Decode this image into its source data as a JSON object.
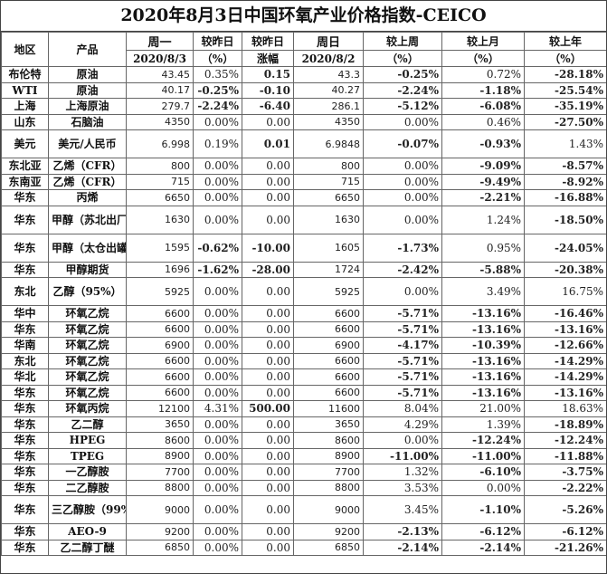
{
  "title": "2020年8月3日中国环氧产业价格指数-CEICO",
  "headers": {
    "region": "地区",
    "product": "产品",
    "mon": "周一",
    "mon_date": "2020/8/3",
    "vs_prev": "较昨日",
    "vs_prev_unit": "（%）",
    "vs_prev_amt": "较昨日",
    "vs_prev_amt_sub": "涨幅",
    "sun": "周日",
    "sun_date": "2020/8/2",
    "vs_week": "较上周",
    "vs_week_unit": "（%）",
    "vs_month": "较上月",
    "vs_month_unit": "（%）",
    "vs_year": "较上年",
    "vs_year_unit": "（%）"
  },
  "rows": [
    {
      "region": "布伦特",
      "product": "原油",
      "mon": "43.45",
      "d_pct": "0.35%",
      "d_amt": "0.15",
      "sun": "43.3",
      "w": "-0.25%",
      "m": "0.72%",
      "y": "-28.18%",
      "tall": false
    },
    {
      "region": "WTI",
      "product": "原油",
      "mon": "40.17",
      "d_pct": "-0.25%",
      "d_amt": "-0.10",
      "sun": "40.27",
      "w": "-2.24%",
      "m": "-1.18%",
      "y": "-25.54%",
      "tall": false
    },
    {
      "region": "上海",
      "product": "上海原油",
      "mon": "279.7",
      "d_pct": "-2.24%",
      "d_amt": "-6.40",
      "sun": "286.1",
      "w": "-5.12%",
      "m": "-6.08%",
      "y": "-35.19%",
      "tall": false
    },
    {
      "region": "山东",
      "product": "石脑油",
      "mon": "4350",
      "d_pct": "0.00%",
      "d_amt": "0.00",
      "sun": "4350",
      "w": "0.00%",
      "m": "0.46%",
      "y": "-27.50%",
      "tall": false
    },
    {
      "region": "美元",
      "product": "美元/人民币",
      "mon": "6.998",
      "d_pct": "0.19%",
      "d_amt": "0.01",
      "sun": "6.9848",
      "w": "-0.07%",
      "m": "-0.93%",
      "y": "1.43%",
      "tall": true
    },
    {
      "region": "东北亚",
      "product": "乙烯（CFR）",
      "mon": "800",
      "d_pct": "0.00%",
      "d_amt": "0.00",
      "sun": "800",
      "w": "0.00%",
      "m": "-9.09%",
      "y": "-8.57%",
      "tall": false
    },
    {
      "region": "东南亚",
      "product": "乙烯（CFR）",
      "mon": "715",
      "d_pct": "0.00%",
      "d_amt": "0.00",
      "sun": "715",
      "w": "0.00%",
      "m": "-9.49%",
      "y": "-8.92%",
      "tall": false
    },
    {
      "region": "华东",
      "product": "丙烯",
      "mon": "6650",
      "d_pct": "0.00%",
      "d_amt": "0.00",
      "sun": "6650",
      "w": "0.00%",
      "m": "-2.21%",
      "y": "-16.88%",
      "tall": false
    },
    {
      "region": "华东",
      "product": "甲醇（苏北出厂）",
      "mon": "1630",
      "d_pct": "0.00%",
      "d_amt": "0.00",
      "sun": "1630",
      "w": "0.00%",
      "m": "1.24%",
      "y": "-18.50%",
      "tall": true
    },
    {
      "region": "华东",
      "product": "甲醇（太仓出罐）",
      "mon": "1595",
      "d_pct": "-0.62%",
      "d_amt": "-10.00",
      "sun": "1605",
      "w": "-1.73%",
      "m": "0.95%",
      "y": "-24.05%",
      "tall": true
    },
    {
      "region": "华东",
      "product": "甲醇期货",
      "mon": "1696",
      "d_pct": "-1.62%",
      "d_amt": "-28.00",
      "sun": "1724",
      "w": "-2.42%",
      "m": "-5.88%",
      "y": "-20.38%",
      "tall": false
    },
    {
      "region": "东北",
      "product": "乙醇（95%）",
      "mon": "5925",
      "d_pct": "0.00%",
      "d_amt": "0.00",
      "sun": "5925",
      "w": "0.00%",
      "m": "3.49%",
      "y": "16.75%",
      "tall": true
    },
    {
      "region": "华中",
      "product": "环氧乙烷",
      "mon": "6600",
      "d_pct": "0.00%",
      "d_amt": "0.00",
      "sun": "6600",
      "w": "-5.71%",
      "m": "-13.16%",
      "y": "-16.46%",
      "tall": false
    },
    {
      "region": "华东",
      "product": "环氧乙烷",
      "mon": "6600",
      "d_pct": "0.00%",
      "d_amt": "0.00",
      "sun": "6600",
      "w": "-5.71%",
      "m": "-13.16%",
      "y": "-13.16%",
      "tall": false
    },
    {
      "region": "华南",
      "product": "环氧乙烷",
      "mon": "6900",
      "d_pct": "0.00%",
      "d_amt": "0.00",
      "sun": "6900",
      "w": "-4.17%",
      "m": "-10.39%",
      "y": "-12.66%",
      "tall": false
    },
    {
      "region": "东北",
      "product": "环氧乙烷",
      "mon": "6600",
      "d_pct": "0.00%",
      "d_amt": "0.00",
      "sun": "6600",
      "w": "-5.71%",
      "m": "-13.16%",
      "y": "-14.29%",
      "tall": false
    },
    {
      "region": "华北",
      "product": "环氧乙烷",
      "mon": "6600",
      "d_pct": "0.00%",
      "d_amt": "0.00",
      "sun": "6600",
      "w": "-5.71%",
      "m": "-13.16%",
      "y": "-14.29%",
      "tall": false
    },
    {
      "region": "华东",
      "product": "环氧乙烷",
      "mon": "6600",
      "d_pct": "0.00%",
      "d_amt": "0.00",
      "sun": "6600",
      "w": "-5.71%",
      "m": "-13.16%",
      "y": "-13.16%",
      "tall": false
    },
    {
      "region": "华东",
      "product": "环氧丙烷",
      "mon": "12100",
      "d_pct": "4.31%",
      "d_amt": "500.00",
      "sun": "11600",
      "w": "8.04%",
      "m": "21.00%",
      "y": "18.63%",
      "tall": false
    },
    {
      "region": "华东",
      "product": "乙二醇",
      "mon": "3650",
      "d_pct": "0.00%",
      "d_amt": "0.00",
      "sun": "3650",
      "w": "4.29%",
      "m": "1.39%",
      "y": "-18.89%",
      "tall": false
    },
    {
      "region": "华东",
      "product": "HPEG",
      "mon": "8600",
      "d_pct": "0.00%",
      "d_amt": "0.00",
      "sun": "8600",
      "w": "0.00%",
      "m": "-12.24%",
      "y": "-12.24%",
      "tall": false
    },
    {
      "region": "华东",
      "product": "TPEG",
      "mon": "8900",
      "d_pct": "0.00%",
      "d_amt": "0.00",
      "sun": "8900",
      "w": "-11.00%",
      "m": "-11.00%",
      "y": "-11.88%",
      "tall": false
    },
    {
      "region": "华东",
      "product": "一乙醇胺",
      "mon": "7700",
      "d_pct": "0.00%",
      "d_amt": "0.00",
      "sun": "7700",
      "w": "1.32%",
      "m": "-6.10%",
      "y": "-3.75%",
      "tall": false
    },
    {
      "region": "华东",
      "product": "二乙醇胺",
      "mon": "8800",
      "d_pct": "0.00%",
      "d_amt": "0.00",
      "sun": "8800",
      "w": "3.53%",
      "m": "0.00%",
      "y": "-2.22%",
      "tall": false
    },
    {
      "region": "华东",
      "product": "三乙醇胺（99%）",
      "mon": "9000",
      "d_pct": "0.00%",
      "d_amt": "0.00",
      "sun": "9000",
      "w": "3.45%",
      "m": "-1.10%",
      "y": "-5.26%",
      "tall": true
    },
    {
      "region": "华东",
      "product": "AEO-9",
      "mon": "9200",
      "d_pct": "0.00%",
      "d_amt": "0.00",
      "sun": "9200",
      "w": "-2.13%",
      "m": "-6.12%",
      "y": "-6.12%",
      "tall": false
    },
    {
      "region": "华东",
      "product": "乙二醇丁醚",
      "mon": "6850",
      "d_pct": "0.00%",
      "d_amt": "0.00",
      "sun": "6850",
      "w": "-2.14%",
      "m": "-2.14%",
      "y": "-21.26%",
      "tall": false
    }
  ]
}
